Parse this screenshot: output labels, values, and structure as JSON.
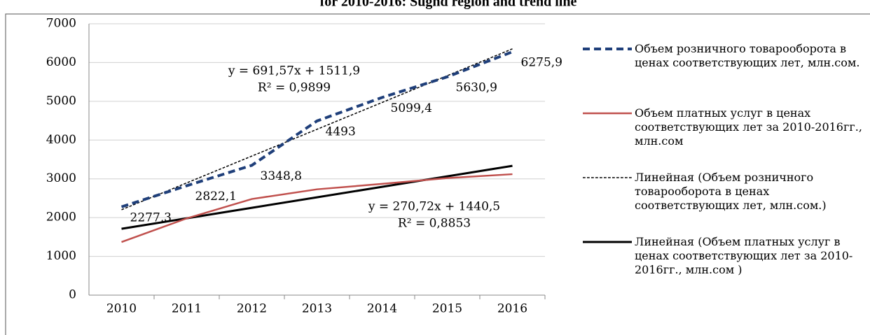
{
  "chart_data": {
    "type": "line",
    "title": "for 2010-2016: Sughd region and trend line",
    "categories": [
      "2010",
      "2011",
      "2012",
      "2013",
      "2014",
      "2015",
      "2016"
    ],
    "series": [
      {
        "name": "Объем розничного товарооборота в ценах соответствующих лет, млн.сом.",
        "color": "#1f3f7a",
        "dashed": true,
        "width": 4,
        "values": [
          2277.3,
          2822.1,
          3348.8,
          4493,
          5099.4,
          5630.9,
          6275.9
        ],
        "value_labels": [
          "2277,3",
          "2822,1",
          "3348,8",
          "4493",
          "5099,4",
          "5630,9",
          "6275,9"
        ]
      },
      {
        "name": "Объем платных услуг в ценах соответствующих лет за 2010-2016гг., млн.сом",
        "color": "#c0504d",
        "dashed": false,
        "width": 2.5,
        "values": [
          1370,
          1980,
          2480,
          2730,
          2870,
          3020,
          3120
        ]
      },
      {
        "name": "Линейная (Объем розничного товарооборота в ценах соответствующих лет, млн.сом.)",
        "color": "#000000",
        "dashed": true,
        "width": 1.5,
        "values": [
          2203,
          2895,
          3587,
          4278,
          4970,
          5661,
          6353
        ]
      },
      {
        "name": "Линейная (Объем платных услуг в ценах соответствующих лет за 2010-2016гг., млн.сом )",
        "color": "#000000",
        "dashed": false,
        "width": 3,
        "values": [
          1711,
          1982,
          2253,
          2523,
          2794,
          3065,
          3336
        ]
      }
    ],
    "annotations": [
      "y = 691,57x + 1511,9",
      "R² = 0,9899",
      "y = 270,72x + 1440,5",
      "R² = 0,8853"
    ],
    "ylim": [
      0,
      7000
    ],
    "yticks": [
      0,
      1000,
      2000,
      3000,
      4000,
      5000,
      6000,
      7000
    ],
    "grid": true
  }
}
